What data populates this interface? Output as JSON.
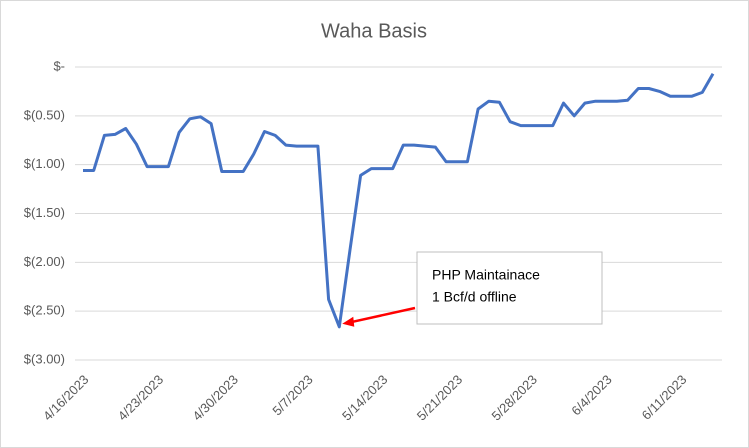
{
  "chart_data": {
    "type": "line",
    "title": "Waha Basis",
    "categories": [
      "4/16/2023",
      null,
      null,
      null,
      null,
      null,
      null,
      "4/23/2023",
      null,
      null,
      null,
      null,
      null,
      null,
      "4/30/2023",
      null,
      null,
      null,
      null,
      null,
      null,
      "5/7/2023",
      null,
      null,
      null,
      null,
      null,
      null,
      "5/14/2023",
      null,
      null,
      null,
      null,
      null,
      null,
      "5/21/2023",
      null,
      null,
      null,
      null,
      null,
      null,
      "5/28/2023",
      null,
      null,
      null,
      null,
      null,
      null,
      "6/4/2023",
      null,
      null,
      null,
      null,
      null,
      null,
      "6/11/2023",
      null,
      null,
      null
    ],
    "series": [
      {
        "name": "Waha Basis",
        "color": "#4472c4",
        "values": [
          -1.06,
          -1.06,
          -0.7,
          -0.69,
          -0.63,
          -0.79,
          -1.02,
          -1.02,
          -1.02,
          -0.67,
          -0.53,
          -0.51,
          -0.58,
          -1.07,
          -1.07,
          -1.07,
          -0.89,
          -0.66,
          -0.7,
          -0.8,
          -0.81,
          -0.81,
          -0.81,
          -2.38,
          -2.66,
          -1.88,
          -1.11,
          -1.04,
          -1.04,
          -1.04,
          -0.8,
          -0.8,
          -0.81,
          -0.82,
          -0.97,
          -0.97,
          -0.97,
          -0.43,
          -0.35,
          -0.36,
          -0.56,
          -0.6,
          -0.6,
          -0.6,
          -0.6,
          -0.37,
          -0.5,
          -0.37,
          -0.35,
          -0.35,
          -0.35,
          -0.34,
          -0.22,
          -0.22,
          -0.25,
          -0.3,
          -0.3,
          -0.3,
          -0.26,
          -0.07
        ]
      }
    ],
    "ylim": [
      -3,
      0
    ],
    "yticks": [
      {
        "value": -3,
        "label": "$(3.00)"
      },
      {
        "value": -2.5,
        "label": "$(2.50)"
      },
      {
        "value": -2,
        "label": "$(2.00)"
      },
      {
        "value": -1.5,
        "label": "$(1.50)"
      },
      {
        "value": -1,
        "label": "$(1.00)"
      },
      {
        "value": -0.5,
        "label": "$(0.50)"
      },
      {
        "value": 0,
        "label": "$-"
      }
    ],
    "grid": true,
    "annotation": {
      "lines": [
        "PHP Maintainace",
        "1 Bcf/d offline"
      ],
      "color": "#ff0000"
    }
  }
}
